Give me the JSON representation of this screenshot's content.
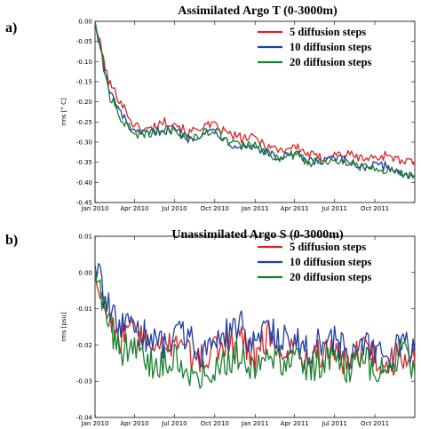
{
  "panel_labels": [
    "a)",
    "b)"
  ],
  "chart_data": [
    {
      "type": "line",
      "title": "Assimilated Argo T (0-3000m)",
      "xlabel": "",
      "ylabel": "rms [° C]",
      "ylim": [
        -0.45,
        0.0
      ],
      "yticks": [
        0.0,
        -0.05,
        -0.1,
        -0.15,
        -0.2,
        -0.25,
        -0.3,
        -0.35,
        -0.4,
        -0.45
      ],
      "ytick_labels": [
        "0.00",
        "-0.05",
        "-0.10",
        "-0.15",
        "-0.20",
        "-0.25",
        "-0.30",
        "-0.35",
        "-0.40",
        "-0.45"
      ],
      "xlim": [
        "2010-01-01",
        "2011-12-31"
      ],
      "xtick_labels": [
        "Jan 2010",
        "Apr 2010",
        "Jul 2010",
        "Oct 2010",
        "Jan 2011",
        "Apr 2011",
        "Jul 2011",
        "Oct 2011"
      ],
      "xtick_dates": [
        "2010-01-01",
        "2010-04-01",
        "2010-07-01",
        "2010-10-01",
        "2011-01-01",
        "2011-04-01",
        "2011-07-01",
        "2011-10-01"
      ],
      "legend_position": "top-right",
      "x": [
        "2010-01-01",
        "2010-02-01",
        "2010-03-01",
        "2010-04-01",
        "2010-05-01",
        "2010-06-01",
        "2010-07-01",
        "2010-08-01",
        "2010-09-01",
        "2010-10-01",
        "2010-11-01",
        "2010-12-01",
        "2011-01-01",
        "2011-02-01",
        "2011-03-01",
        "2011-04-01",
        "2011-05-01",
        "2011-06-01",
        "2011-07-01",
        "2011-08-01",
        "2011-09-01",
        "2011-10-01",
        "2011-11-01",
        "2011-12-01",
        "2011-12-31"
      ],
      "series": [
        {
          "name": "5 diffusion steps",
          "color": "#d62728",
          "values": [
            0.0,
            -0.15,
            -0.2,
            -0.26,
            -0.27,
            -0.25,
            -0.25,
            -0.28,
            -0.26,
            -0.26,
            -0.28,
            -0.29,
            -0.29,
            -0.31,
            -0.32,
            -0.31,
            -0.33,
            -0.34,
            -0.33,
            -0.33,
            -0.34,
            -0.34,
            -0.33,
            -0.35,
            -0.35
          ]
        },
        {
          "name": "10 diffusion steps",
          "color": "#1f3f9f",
          "values": [
            0.0,
            -0.17,
            -0.23,
            -0.28,
            -0.28,
            -0.27,
            -0.27,
            -0.29,
            -0.28,
            -0.27,
            -0.3,
            -0.31,
            -0.31,
            -0.33,
            -0.34,
            -0.33,
            -0.35,
            -0.35,
            -0.34,
            -0.35,
            -0.36,
            -0.36,
            -0.36,
            -0.38,
            -0.38
          ]
        },
        {
          "name": "20 diffusion steps",
          "color": "#1a7f2e",
          "values": [
            0.0,
            -0.18,
            -0.24,
            -0.28,
            -0.28,
            -0.27,
            -0.27,
            -0.29,
            -0.28,
            -0.27,
            -0.3,
            -0.31,
            -0.31,
            -0.33,
            -0.34,
            -0.33,
            -0.35,
            -0.35,
            -0.34,
            -0.35,
            -0.36,
            -0.36,
            -0.37,
            -0.38,
            -0.38
          ]
        }
      ]
    },
    {
      "type": "line",
      "title": "Unassimilated Argo S (0-3000m)",
      "xlabel": "",
      "ylabel": "rms [psu]",
      "ylim": [
        -0.04,
        0.01
      ],
      "yticks": [
        0.01,
        0.0,
        -0.01,
        -0.02,
        -0.03,
        -0.04
      ],
      "ytick_labels": [
        "0.01",
        "0.00",
        "-0.01",
        "-0.02",
        "-0.03",
        "-0.04"
      ],
      "xlim": [
        "2010-01-01",
        "2011-12-31"
      ],
      "xtick_labels": [
        "Jan 2010",
        "Apr 2010",
        "Jul 2010",
        "Oct 2010",
        "Jan 2011",
        "Apr 2011",
        "Jul 2011",
        "Oct 2011"
      ],
      "xtick_dates": [
        "2010-01-01",
        "2010-04-01",
        "2010-07-01",
        "2010-10-01",
        "2011-01-01",
        "2011-04-01",
        "2011-07-01",
        "2011-10-01"
      ],
      "legend_position": "top-right",
      "x": [
        "2010-01-01",
        "2010-02-01",
        "2010-03-01",
        "2010-04-01",
        "2010-05-01",
        "2010-06-01",
        "2010-07-01",
        "2010-08-01",
        "2010-09-01",
        "2010-10-01",
        "2010-11-01",
        "2010-12-01",
        "2011-01-01",
        "2011-02-01",
        "2011-03-01",
        "2011-04-01",
        "2011-05-01",
        "2011-06-01",
        "2011-07-01",
        "2011-08-01",
        "2011-09-01",
        "2011-10-01",
        "2011-11-01",
        "2011-12-01",
        "2011-12-31"
      ],
      "series": [
        {
          "name": "5 diffusion steps",
          "color": "#d62728",
          "values": [
            0.0,
            -0.012,
            -0.018,
            -0.016,
            -0.02,
            -0.022,
            -0.018,
            -0.022,
            -0.024,
            -0.021,
            -0.02,
            -0.018,
            -0.023,
            -0.017,
            -0.022,
            -0.02,
            -0.024,
            -0.022,
            -0.021,
            -0.025,
            -0.022,
            -0.024,
            -0.026,
            -0.022,
            -0.025
          ]
        },
        {
          "name": "10 diffusion steps",
          "color": "#1f3f9f",
          "values": [
            0.002,
            -0.01,
            -0.016,
            -0.014,
            -0.018,
            -0.02,
            -0.016,
            -0.018,
            -0.022,
            -0.019,
            -0.017,
            -0.015,
            -0.02,
            -0.014,
            -0.019,
            -0.018,
            -0.022,
            -0.019,
            -0.019,
            -0.023,
            -0.02,
            -0.021,
            -0.024,
            -0.02,
            -0.022
          ]
        },
        {
          "name": "20 diffusion steps",
          "color": "#1a7f2e",
          "values": [
            0.001,
            -0.014,
            -0.022,
            -0.02,
            -0.024,
            -0.026,
            -0.022,
            -0.03,
            -0.028,
            -0.026,
            -0.024,
            -0.022,
            -0.027,
            -0.021,
            -0.026,
            -0.024,
            -0.027,
            -0.025,
            -0.024,
            -0.027,
            -0.024,
            -0.026,
            -0.028,
            -0.02,
            -0.028
          ]
        }
      ]
    }
  ]
}
